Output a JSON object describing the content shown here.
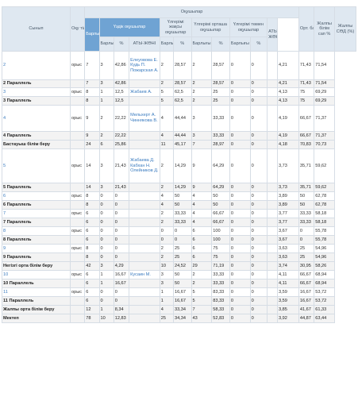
{
  "header": {
    "class_col": "Сынып",
    "lang_col": "Оқу тілі",
    "students_group": "Оқушылар",
    "total_col": "Барлығы",
    "excellent_group": "Үздік оқушылар",
    "good_group": "Үлгерімі жақсы оқушылар",
    "average_group": "Үлгерімі орташа оқушылар",
    "low_group": "Үлгерімі төмен оқушылар",
    "avg_score_col": "Орт. балл",
    "quality_col": "Жалпы білім сап %",
    "sod_col": "Жалпы СӨД (%)",
    "sub_total": "Барлығы",
    "sub_pct": "%",
    "sub_names": "АТЫ-ЖӨНІ",
    "low_names": "АТЫ-ЖӨНІ"
  },
  "rows": [
    {
      "type": "class",
      "cls": "2",
      "lang": "орыс",
      "total": "7",
      "ex": "3",
      "exp": "42,86",
      "names": "Елеуовова Е. Кудь П. Пожарская А.",
      "good": "2",
      "gp": "28,57",
      "avg": "2",
      "ap": "28,57",
      "low": "0",
      "lp": "0",
      "score": "4,21",
      "q": "71,43",
      "s": "71,54",
      "h": 36
    },
    {
      "type": "sum",
      "cls": "2 Параллель",
      "lang": "",
      "total": "7",
      "ex": "3",
      "exp": "42,86",
      "names": "",
      "good": "2",
      "gp": "28,57",
      "avg": "2",
      "ap": "28,57",
      "low": "0",
      "lp": "0",
      "score": "4,21",
      "q": "71,43",
      "s": "71,54",
      "h": 10
    },
    {
      "type": "class",
      "cls": "3",
      "lang": "орыс",
      "total": "8",
      "ex": "1",
      "exp": "12,5",
      "names": "Жабаев А.",
      "good": "5",
      "gp": "62,5",
      "avg": "2",
      "ap": "25",
      "low": "0",
      "lp": "0",
      "score": "4,13",
      "q": "75",
      "s": "69,29",
      "h": 11
    },
    {
      "type": "sum",
      "cls": "3 Параллель",
      "lang": "",
      "total": "8",
      "ex": "1",
      "exp": "12,5",
      "names": "",
      "good": "5",
      "gp": "62,5",
      "avg": "2",
      "ap": "25",
      "low": "0",
      "lp": "0",
      "score": "4,13",
      "q": "75",
      "s": "69,29",
      "h": 11
    },
    {
      "type": "class",
      "cls": "4",
      "lang": "орыс",
      "total": "9",
      "ex": "2",
      "exp": "22,22",
      "names": "Мельхерт А. Чиннякова В.",
      "good": "4",
      "gp": "44,44",
      "avg": "3",
      "ap": "33,33",
      "low": "0",
      "lp": "0",
      "score": "4,19",
      "q": "66,67",
      "s": "71,37",
      "h": 33
    },
    {
      "type": "sum",
      "cls": "4 Параллель",
      "lang": "",
      "total": "9",
      "ex": "2",
      "exp": "22,22",
      "names": "",
      "good": "4",
      "gp": "44,44",
      "avg": "3",
      "ap": "33,33",
      "low": "0",
      "lp": "0",
      "score": "4,19",
      "q": "66,67",
      "s": "71,37",
      "h": 11
    },
    {
      "type": "sum",
      "cls": "Бастауыш білім беру",
      "lang": "",
      "total": "24",
      "ex": "6",
      "exp": "25,86",
      "names": "",
      "good": "11",
      "gp": "45,17",
      "avg": "7",
      "ap": "28,97",
      "low": "0",
      "lp": "0",
      "score": "4,18",
      "q": "70,83",
      "s": "70,73",
      "h": 11
    },
    {
      "type": "class",
      "cls": "5",
      "lang": "орыс",
      "total": "14",
      "ex": "3",
      "exp": "21,43",
      "names": "Жабаева Д. Кабхан Н. Олейников Д.",
      "good": "2",
      "gp": "14,29",
      "avg": "9",
      "ap": "64,29",
      "low": "0",
      "lp": "0",
      "score": "3,73",
      "q": "35,71",
      "s": "59,62",
      "h": 43
    },
    {
      "type": "sum",
      "cls": "5 Параллель",
      "lang": "",
      "total": "14",
      "ex": "3",
      "exp": "21,43",
      "names": "",
      "good": "2",
      "gp": "14,29",
      "avg": "9",
      "ap": "64,29",
      "low": "0",
      "lp": "0",
      "score": "3,73",
      "q": "35,71",
      "s": "59,62",
      "h": 11
    },
    {
      "type": "class",
      "cls": "6",
      "lang": "орыс",
      "total": "8",
      "ex": "0",
      "exp": "0",
      "names": "",
      "good": "4",
      "gp": "50",
      "avg": "4",
      "ap": "50",
      "low": "0",
      "lp": "0",
      "score": "3,89",
      "q": "50",
      "s": "62,78",
      "h": 11
    },
    {
      "type": "sum",
      "cls": "6 Параллель",
      "lang": "",
      "total": "8",
      "ex": "0",
      "exp": "0",
      "names": "",
      "good": "4",
      "gp": "50",
      "avg": "4",
      "ap": "50",
      "low": "0",
      "lp": "0",
      "score": "3,89",
      "q": "50",
      "s": "62,78",
      "h": 11
    },
    {
      "type": "class",
      "cls": "7",
      "lang": "орыс",
      "total": "6",
      "ex": "0",
      "exp": "0",
      "names": "",
      "good": "2",
      "gp": "33,33",
      "avg": "4",
      "ap": "66,67",
      "low": "0",
      "lp": "0",
      "score": "3,77",
      "q": "33,33",
      "s": "58,18",
      "h": 11
    },
    {
      "type": "sum",
      "cls": "7 Параллель",
      "lang": "",
      "total": "6",
      "ex": "0",
      "exp": "0",
      "names": "",
      "good": "2",
      "gp": "33,33",
      "avg": "4",
      "ap": "66,67",
      "low": "0",
      "lp": "0",
      "score": "3,77",
      "q": "33,33",
      "s": "58,18",
      "h": 11
    },
    {
      "type": "class",
      "cls": "8",
      "lang": "орыс",
      "total": "6",
      "ex": "0",
      "exp": "0",
      "names": "",
      "good": "0",
      "gp": "0",
      "avg": "6",
      "ap": "100",
      "low": "0",
      "lp": "0",
      "score": "3,67",
      "q": "0",
      "s": "55,78",
      "h": 11
    },
    {
      "type": "sum",
      "cls": "8 Параллель",
      "lang": "",
      "total": "6",
      "ex": "0",
      "exp": "0",
      "names": "",
      "good": "0",
      "gp": "0",
      "avg": "6",
      "ap": "100",
      "low": "0",
      "lp": "0",
      "score": "3,67",
      "q": "0",
      "s": "55,78",
      "h": 11
    },
    {
      "type": "class",
      "cls": "9",
      "lang": "орыс",
      "total": "8",
      "ex": "0",
      "exp": "0",
      "names": "",
      "good": "2",
      "gp": "25",
      "avg": "6",
      "ap": "75",
      "low": "0",
      "lp": "0",
      "score": "3,63",
      "q": "25",
      "s": "54,96",
      "h": 11
    },
    {
      "type": "sum",
      "cls": "9 Параллель",
      "lang": "",
      "total": "8",
      "ex": "0",
      "exp": "0",
      "names": "",
      "good": "2",
      "gp": "25",
      "avg": "6",
      "ap": "75",
      "low": "0",
      "lp": "0",
      "score": "3,63",
      "q": "25",
      "s": "54,96",
      "h": 11
    },
    {
      "type": "sum",
      "cls": "Негізгі орта білім беру",
      "lang": "",
      "total": "42",
      "ex": "3",
      "exp": "4,29",
      "names": "",
      "good": "10",
      "gp": "24,52",
      "avg": "29",
      "ap": "71,19",
      "low": "0",
      "lp": "0",
      "score": "3,74",
      "q": "30,95",
      "s": "58,26",
      "h": 11
    },
    {
      "type": "class",
      "cls": "10",
      "lang": "орыс",
      "total": "6",
      "ex": "1",
      "exp": "16,67",
      "names": "Кусаин М.",
      "good": "3",
      "gp": "50",
      "avg": "2",
      "ap": "33,33",
      "low": "0",
      "lp": "0",
      "score": "4,11",
      "q": "66,67",
      "s": "68,94",
      "h": 11
    },
    {
      "type": "sum",
      "cls": "10 Параллель",
      "lang": "",
      "total": "6",
      "ex": "1",
      "exp": "16,67",
      "names": "",
      "good": "3",
      "gp": "50",
      "avg": "2",
      "ap": "33,33",
      "low": "0",
      "lp": "0",
      "score": "4,11",
      "q": "66,67",
      "s": "68,94",
      "h": 11
    },
    {
      "type": "class",
      "cls": "11",
      "lang": "орыс",
      "total": "6",
      "ex": "0",
      "exp": "0",
      "names": "",
      "good": "1",
      "gp": "16,67",
      "avg": "5",
      "ap": "83,33",
      "low": "0",
      "lp": "0",
      "score": "3,59",
      "q": "16,67",
      "s": "53,72",
      "h": 11
    },
    {
      "type": "sum",
      "cls": "11 Параллель",
      "lang": "",
      "total": "6",
      "ex": "0",
      "exp": "0",
      "names": "",
      "good": "1",
      "gp": "16,67",
      "avg": "5",
      "ap": "83,33",
      "low": "0",
      "lp": "0",
      "score": "3,59",
      "q": "16,67",
      "s": "53,72",
      "h": 11
    },
    {
      "type": "sum",
      "cls": "Жалпы орта білім беру",
      "lang": "",
      "total": "12",
      "ex": "1",
      "exp": "8,34",
      "names": "",
      "good": "4",
      "gp": "33,34",
      "avg": "7",
      "ap": "58,33",
      "low": "0",
      "lp": "0",
      "score": "3,85",
      "q": "41,67",
      "s": "61,33",
      "h": 11
    },
    {
      "type": "sum",
      "cls": "Мектеп",
      "lang": "",
      "total": "78",
      "ex": "10",
      "exp": "12,83",
      "names": "",
      "good": "25",
      "gp": "34,34",
      "avg": "43",
      "ap": "52,83",
      "low": "0",
      "lp": "0",
      "score": "3,92",
      "q": "44,87",
      "s": "63,44",
      "h": 11
    }
  ]
}
